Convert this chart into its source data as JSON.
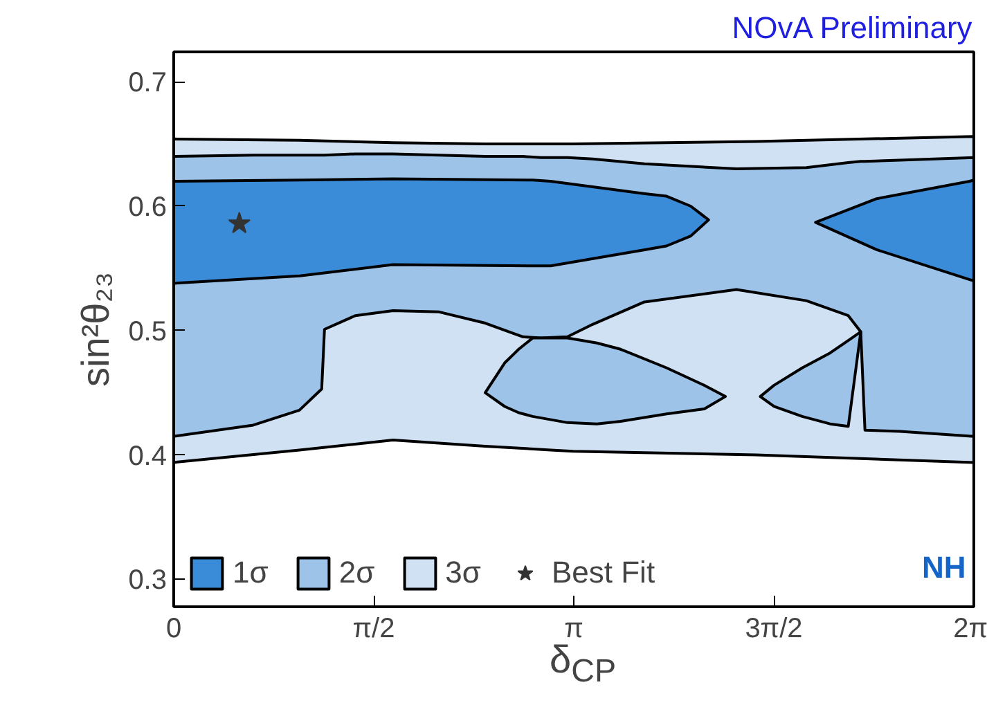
{
  "chart_data": {
    "type": "area",
    "xlabel": "δ$_{CP}$",
    "ylabel": "sin²θ₂₃",
    "annotations": [
      "NOvA Preliminary",
      "NH"
    ],
    "xlim": [
      0,
      6.2832
    ],
    "ylim": [
      0.278,
      0.724
    ],
    "xticks": [
      0,
      {
        "value": 1.5708,
        "label": "π/2"
      },
      {
        "value": 3.1416,
        "label": "π"
      },
      {
        "value": 4.7124,
        "label": "3π/2"
      },
      {
        "value": 6.2832,
        "label": "2π"
      }
    ],
    "yticks": [
      0.3,
      0.4,
      0.5,
      0.6,
      0.7
    ],
    "grid": false,
    "legend": "bottom left",
    "series": [
      {
        "name": "3σ",
        "color": "#d0e1f3",
        "x": [
          0,
          0.987,
          1.722,
          2.446,
          2.961,
          3.136,
          4.573,
          6.283,
          6.283,
          4.573,
          3.136,
          2.961,
          2.446,
          1.722,
          0.987,
          0
        ],
        "values": [
          0.654,
          0.653,
          0.651,
          0.65,
          0.65,
          0.65,
          0.652,
          0.656,
          0.394,
          0.4,
          0.403,
          0.404,
          0.407,
          0.412,
          0.404,
          0.394
        ]
      },
      {
        "name": "2σ",
        "color": "#9dc3e9",
        "x": [
          0,
          0.625,
          0.987,
          1.162,
          1.184,
          1.426,
          1.722,
          2.084,
          2.446,
          2.742,
          2.884,
          3.092,
          3.29,
          3.696,
          4.419,
          4.968,
          5.297,
          5.395,
          5.428,
          5.702,
          6.283,
          6.283,
          5.702,
          5.428,
          5.395,
          5.297,
          4.968,
          4.419,
          3.696,
          3.29,
          3.092,
          2.884,
          2.742,
          2.446,
          2.084,
          1.722,
          1.426,
          1.184,
          1.162,
          0.987,
          0.625,
          0
        ],
        "values": [
          0.64,
          0.641,
          0.641,
          0.641,
          0.641,
          0.642,
          0.642,
          0.641,
          0.64,
          0.64,
          0.639,
          0.639,
          0.638,
          0.634,
          0.63,
          0.631,
          0.635,
          0.636,
          0.636,
          0.637,
          0.639,
          0.415,
          0.419,
          0.42,
          0.499,
          0.512,
          0.524,
          0.533,
          0.523,
          0.505,
          0.495,
          0.494,
          0.495,
          0.506,
          0.515,
          0.516,
          0.512,
          0.501,
          0.453,
          0.436,
          0.424,
          0.415
        ]
      },
      {
        "color": "#9dc3e9",
        "x": [
          2.446,
          2.599,
          2.709,
          2.818,
          3.092,
          3.323,
          3.509,
          3.871,
          4.167,
          4.332,
          4.167,
          3.871,
          3.509,
          3.323,
          3.092,
          2.818,
          2.709,
          2.599
        ],
        "values": [
          0.45,
          0.474,
          0.485,
          0.494,
          0.494,
          0.49,
          0.485,
          0.47,
          0.456,
          0.447,
          0.437,
          0.433,
          0.427,
          0.425,
          0.426,
          0.431,
          0.434,
          0.439
        ]
      },
      {
        "color": "#9dc3e9",
        "x": [
          4.606,
          4.714,
          4.935,
          5.154,
          5.297,
          5.395,
          5.297,
          5.154,
          4.935,
          4.714
        ],
        "values": [
          0.447,
          0.456,
          0.47,
          0.482,
          0.492,
          0.499,
          0.423,
          0.425,
          0.431,
          0.439
        ]
      },
      {
        "name": "1σ",
        "color": "#3a8bd8",
        "x": [
          0,
          0.99,
          1.72,
          2.82,
          2.96,
          3.7,
          3.87,
          4.06,
          4.2,
          4.06,
          3.87,
          3.7,
          2.96,
          2.82,
          1.72,
          0.99,
          0
        ],
        "values": [
          0.62,
          0.621,
          0.622,
          0.621,
          0.62,
          0.61,
          0.608,
          0.6,
          0.589,
          0.576,
          0.568,
          0.565,
          0.552,
          0.552,
          0.553,
          0.544,
          0.538
        ]
      },
      {
        "color": "#3a8bd8",
        "x": [
          5.04,
          5.52,
          6.25,
          6.283,
          6.283,
          6.25,
          5.52
        ],
        "values": [
          0.587,
          0.606,
          0.62,
          0.621,
          0.54,
          0.541,
          0.565
        ]
      },
      {
        "name": "Best Fit",
        "type": "scatter",
        "marker": "star",
        "color": "#333333",
        "x": [
          0.515
        ],
        "values": [
          0.586
        ]
      }
    ]
  }
}
